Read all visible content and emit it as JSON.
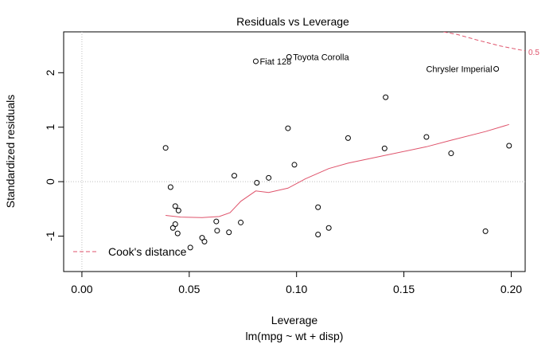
{
  "chart_data": {
    "type": "scatter",
    "title": "Residuals vs Leverage",
    "xlabel": "Leverage",
    "sublabel": "lm(mpg ~ wt + disp)",
    "ylabel": "Standardized residuals",
    "xlim": [
      -0.0085,
      0.2065
    ],
    "ylim": [
      -1.65,
      2.75
    ],
    "xticks": [
      0.0,
      0.05,
      0.1,
      0.15,
      0.2
    ],
    "xtick_labels": [
      "0.00",
      "0.05",
      "0.10",
      "0.15",
      "0.20"
    ],
    "yticks": [
      -1,
      0,
      1,
      2
    ],
    "ytick_labels": [
      "-1",
      "0",
      "1",
      "2"
    ],
    "points": [
      {
        "x": 0.039,
        "y": 0.62
      },
      {
        "x": 0.0413,
        "y": -0.1
      },
      {
        "x": 0.0424,
        "y": -0.85
      },
      {
        "x": 0.0435,
        "y": -0.45
      },
      {
        "x": 0.0435,
        "y": -0.78
      },
      {
        "x": 0.0446,
        "y": -0.95
      },
      {
        "x": 0.045,
        "y": -0.53
      },
      {
        "x": 0.0505,
        "y": -1.21
      },
      {
        "x": 0.056,
        "y": -1.03
      },
      {
        "x": 0.0571,
        "y": -1.1
      },
      {
        "x": 0.0626,
        "y": -0.73
      },
      {
        "x": 0.063,
        "y": -0.9
      },
      {
        "x": 0.0685,
        "y": -0.93
      },
      {
        "x": 0.071,
        "y": 0.11
      },
      {
        "x": 0.074,
        "y": -0.75
      },
      {
        "x": 0.081,
        "y": 2.21
      },
      {
        "x": 0.0815,
        "y": -0.02
      },
      {
        "x": 0.087,
        "y": 0.07
      },
      {
        "x": 0.096,
        "y": 0.98
      },
      {
        "x": 0.0965,
        "y": 2.29
      },
      {
        "x": 0.099,
        "y": 0.31
      },
      {
        "x": 0.11,
        "y": -0.47
      },
      {
        "x": 0.11,
        "y": -0.97
      },
      {
        "x": 0.115,
        "y": -0.85
      },
      {
        "x": 0.124,
        "y": 0.8
      },
      {
        "x": 0.141,
        "y": 0.61
      },
      {
        "x": 0.1415,
        "y": 1.55
      },
      {
        "x": 0.1605,
        "y": 0.82
      },
      {
        "x": 0.172,
        "y": 0.52
      },
      {
        "x": 0.188,
        "y": -0.91
      },
      {
        "x": 0.193,
        "y": 2.07
      },
      {
        "x": 0.199,
        "y": 0.66
      }
    ],
    "point_labels": [
      {
        "text": "Fiat 128",
        "x": 0.081,
        "y": 2.21,
        "anchor": "left"
      },
      {
        "text": "Toyota Corolla",
        "x": 0.0965,
        "y": 2.29,
        "anchor": "left"
      },
      {
        "text": "Chrysler Imperial",
        "x": 0.193,
        "y": 2.07,
        "anchor": "right"
      }
    ],
    "smooth_line": [
      {
        "x": 0.039,
        "y": -0.62
      },
      {
        "x": 0.046,
        "y": -0.65
      },
      {
        "x": 0.056,
        "y": -0.66
      },
      {
        "x": 0.064,
        "y": -0.64
      },
      {
        "x": 0.069,
        "y": -0.57
      },
      {
        "x": 0.074,
        "y": -0.36
      },
      {
        "x": 0.081,
        "y": -0.17
      },
      {
        "x": 0.087,
        "y": -0.2
      },
      {
        "x": 0.096,
        "y": -0.12
      },
      {
        "x": 0.104,
        "y": 0.05
      },
      {
        "x": 0.115,
        "y": 0.24
      },
      {
        "x": 0.124,
        "y": 0.34
      },
      {
        "x": 0.141,
        "y": 0.48
      },
      {
        "x": 0.1605,
        "y": 0.64
      },
      {
        "x": 0.172,
        "y": 0.76
      },
      {
        "x": 0.188,
        "y": 0.92
      },
      {
        "x": 0.199,
        "y": 1.05
      }
    ],
    "cooks_distance": {
      "level_label": "0.5",
      "points": [
        {
          "x": 0.1685,
          "y": 2.75
        },
        {
          "x": 0.175,
          "y": 2.7
        },
        {
          "x": 0.185,
          "y": 2.59
        },
        {
          "x": 0.195,
          "y": 2.49
        },
        {
          "x": 0.2065,
          "y": 2.4
        }
      ]
    },
    "legend": {
      "label": "Cook's distance",
      "position": "bottom-left"
    },
    "reference_lines": {
      "h": 0,
      "v": 0
    },
    "colors": {
      "points": "#000000",
      "smooth": "#DF536B",
      "cooks": "#DF536B",
      "reference": "#BEBEBE",
      "axis": "#000000"
    }
  }
}
